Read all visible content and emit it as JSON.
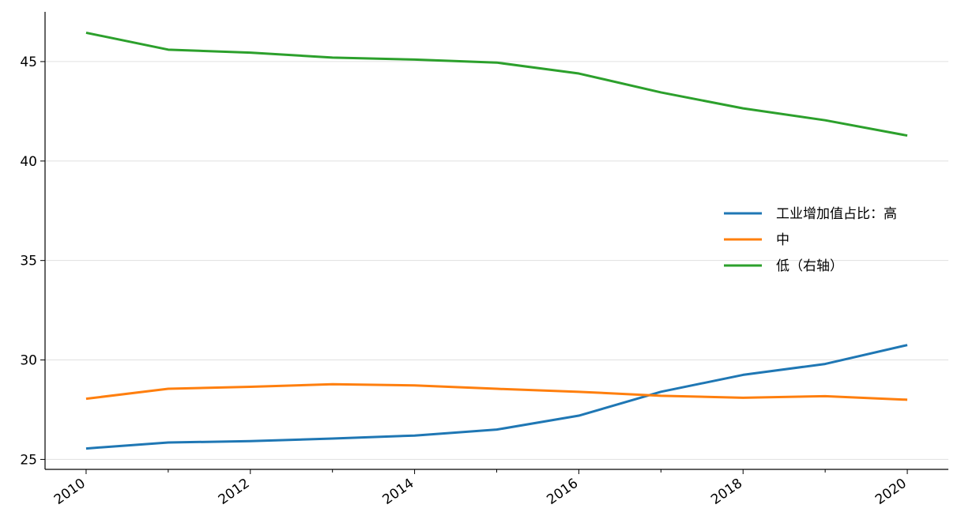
{
  "chart_data": {
    "type": "line",
    "x": [
      2010,
      2011,
      2012,
      2013,
      2014,
      2015,
      2016,
      2017,
      2018,
      2019,
      2020
    ],
    "series": [
      {
        "name": "工业增加值占比：高",
        "color": "#1f77b4",
        "values": [
          25.55,
          25.85,
          25.92,
          26.05,
          26.2,
          26.5,
          27.2,
          28.4,
          29.25,
          29.8,
          30.75
        ]
      },
      {
        "name": "中",
        "color": "#ff7f0e",
        "values": [
          28.05,
          28.55,
          28.65,
          28.78,
          28.72,
          28.55,
          28.4,
          28.2,
          28.1,
          28.18,
          28.0
        ]
      },
      {
        "name": "低（右轴）",
        "color": "#2ca02c",
        "values": [
          46.45,
          45.6,
          45.45,
          45.2,
          45.1,
          44.95,
          44.4,
          43.45,
          42.65,
          42.05,
          41.28
        ]
      }
    ],
    "xlim": [
      2009.5,
      2020.5
    ],
    "xticks": [
      2010,
      2012,
      2014,
      2016,
      2018,
      2020
    ],
    "x_minor_ticks": [
      2011,
      2013,
      2015,
      2017,
      2019
    ],
    "ylim": [
      24.5,
      47.5
    ],
    "yticks": [
      25,
      30,
      35,
      40,
      45
    ],
    "grid": true,
    "legend": "center right"
  }
}
